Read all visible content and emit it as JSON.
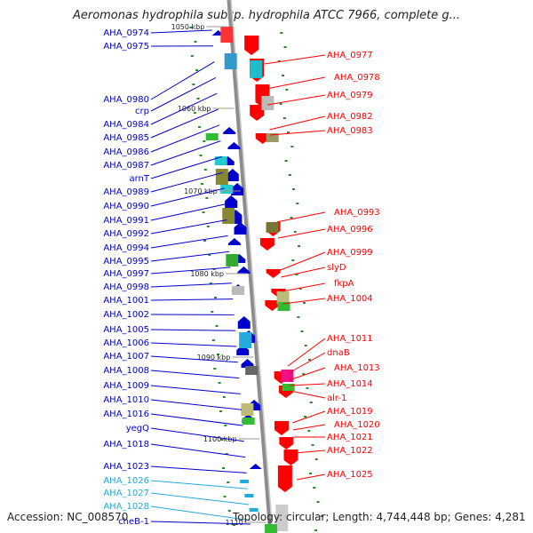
{
  "title": "Aeromonas hydrophila subsp. hydrophila ATCC 7966, complete g...",
  "footer": {
    "accession": "Accession: NC_008570",
    "summary": "Topology: circular; Length: 4,744,448 bp; Genes: 4,281"
  },
  "colors": {
    "forward": "#0000cc",
    "reverse": "#ff0000",
    "rna": "#22aadd",
    "backbone": "#999999"
  },
  "ticks": [
    "1050 kbp",
    "1060 kbp",
    "1070 kbp",
    "1080 kbp",
    "1090 kbp",
    "1100 kbp",
    "1110"
  ],
  "left_labels": [
    "AHA_0974",
    "AHA_0975",
    "AHA_0980",
    "crp",
    "AHA_0984",
    "AHA_0985",
    "AHA_0986",
    "AHA_0987",
    "arnT",
    "AHA_0989",
    "AHA_0990",
    "AHA_0991",
    "AHA_0992",
    "AHA_0994",
    "AHA_0995",
    "AHA_0997",
    "AHA_0998",
    "AHA_1001",
    "AHA_1002",
    "AHA_1005",
    "AHA_1006",
    "AHA_1007",
    "AHA_1008",
    "AHA_1009",
    "AHA_1010",
    "AHA_1016",
    "yegQ",
    "AHA_1018",
    "AHA_1023",
    "AHA_1026",
    "AHA_1027",
    "AHA_1028",
    "cheB-1"
  ],
  "right_labels": [
    "AHA_0977",
    "AHA_0978",
    "AHA_0979",
    "AHA_0982",
    "AHA_0983",
    "AHA_0993",
    "AHA_0996",
    "AHA_0999",
    "slyD",
    "fkpA",
    "AHA_1004",
    "AHA_1011",
    "dnaB",
    "AHA_1013",
    "AHA_1014",
    "alr-1",
    "AHA_1019",
    "AHA_1020",
    "AHA_1021",
    "AHA_1022",
    "AHA_1025"
  ]
}
